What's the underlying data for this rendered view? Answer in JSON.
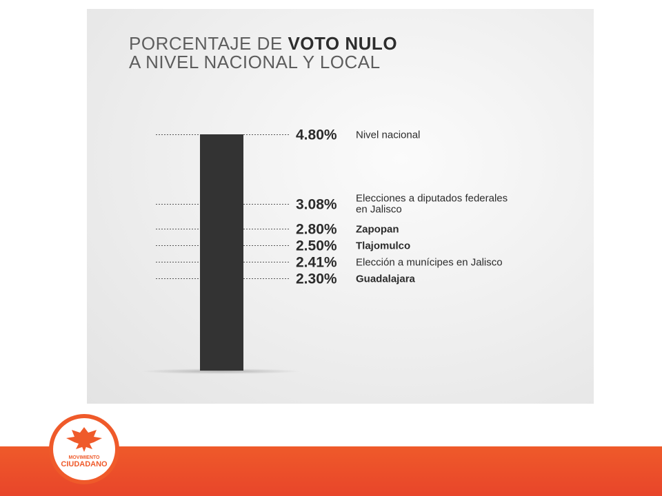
{
  "title": {
    "line1_light": "PORCENTAJE DE",
    "line1_bold": "VOTO NULO",
    "line2": "A NIVEL NACIONAL Y LOCAL"
  },
  "chart_data": {
    "type": "bar",
    "single_bar_value": 4.8,
    "bar_color": "#333333",
    "markers": [
      {
        "value": 4.8,
        "label": "4.80%",
        "desc": [
          "Nivel nacional"
        ],
        "bold": false
      },
      {
        "value": 3.08,
        "label": "3.08%",
        "desc": [
          "Elecciones a diputados federales",
          "en Jalisco"
        ],
        "bold": false
      },
      {
        "value": 2.8,
        "label": "2.80%",
        "desc": [
          "Zapopan"
        ],
        "bold": true
      },
      {
        "value": 2.5,
        "label": "2.50%",
        "desc": [
          "Tlajomulco"
        ],
        "bold": true
      },
      {
        "value": 2.41,
        "label": "2.41%",
        "desc": [
          "Elección a munícipes en Jalisco"
        ],
        "bold": false
      },
      {
        "value": 2.3,
        "label": "2.30%",
        "desc": [
          "Guadalajara"
        ],
        "bold": true
      }
    ]
  },
  "logo": {
    "line1": "MOVIMIENTO",
    "line2": "CIUDADANO",
    "accent": "#ef5a2a"
  },
  "colors": {
    "band": "#ef5a2a",
    "text": "#2b2b2b"
  }
}
